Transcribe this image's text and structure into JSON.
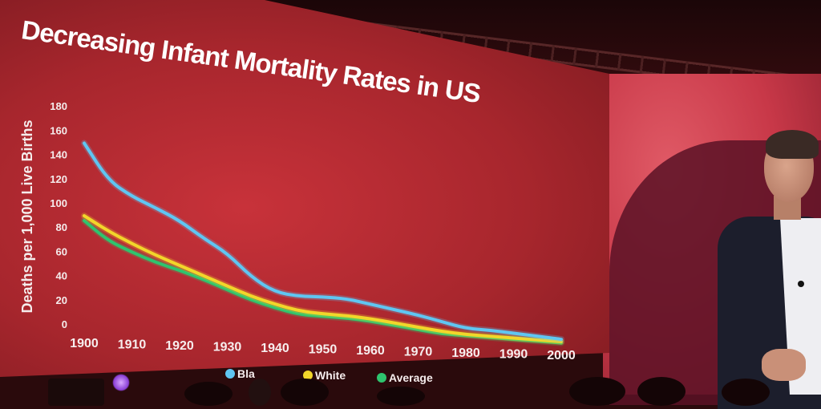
{
  "chart_data": {
    "type": "line",
    "title": "Decreasing Infant Mortality Rates in US",
    "ylabel": "Deaths per 1,000 Live Births",
    "xlabel": "",
    "ylim": [
      0,
      180
    ],
    "xlim": [
      1900,
      2000
    ],
    "yticks": [
      "0",
      "20",
      "40",
      "60",
      "80",
      "100",
      "120",
      "140",
      "160",
      "180"
    ],
    "xticks": [
      "1900",
      "1910",
      "1920",
      "1930",
      "1940",
      "1950",
      "1960",
      "1970",
      "1980",
      "1990",
      "2000"
    ],
    "series": [
      {
        "name": "Black",
        "legend_label": "Bla",
        "color": "#5fc6f2",
        "x": [
          1900,
          1905,
          1910,
          1915,
          1920,
          1925,
          1930,
          1935,
          1940,
          1945,
          1950,
          1955,
          1960,
          1965,
          1970,
          1975,
          1980,
          1985,
          1990,
          1995,
          2000
        ],
        "y": [
          150,
          120,
          107,
          98,
          88,
          74,
          62,
          43,
          31,
          28,
          28,
          27,
          23,
          19,
          15,
          10,
          5,
          4,
          2,
          0,
          -2
        ]
      },
      {
        "name": "White",
        "legend_label": "White",
        "color": "#f2d62a",
        "x": [
          1900,
          1905,
          1910,
          1915,
          1920,
          1925,
          1930,
          1935,
          1940,
          1945,
          1950,
          1955,
          1960,
          1965,
          1970,
          1975,
          1980,
          1985,
          1990,
          1995,
          2000
        ],
        "y": [
          90,
          78,
          68,
          59,
          51,
          43,
          35,
          27,
          21,
          16,
          14,
          13,
          11,
          8,
          5,
          2,
          0,
          -1,
          -2,
          -3,
          -4
        ]
      },
      {
        "name": "Average",
        "legend_label": "Average",
        "color": "#2ec46e",
        "x": [
          1900,
          1905,
          1910,
          1915,
          1920,
          1925,
          1930,
          1935,
          1940,
          1945,
          1950,
          1955,
          1960,
          1965,
          1970,
          1975,
          1980,
          1985,
          1990,
          1995,
          2000
        ],
        "y": [
          86,
          70,
          61,
          53,
          47,
          40,
          32,
          24,
          18,
          13,
          12,
          11,
          9,
          6,
          3,
          0,
          -1,
          -2,
          -3,
          -4,
          -5
        ]
      }
    ],
    "legend_position": "bottom"
  }
}
